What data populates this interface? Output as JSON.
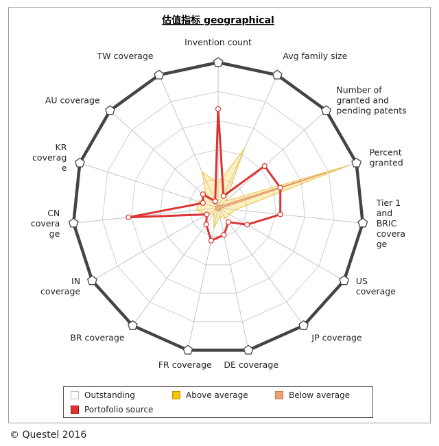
{
  "chart_data": {
    "type": "radar",
    "title": "估值指标 geographical",
    "axes": [
      "Invention count",
      "Avg family size",
      "Number of granted and pending patents",
      "Percent granted",
      "Tier 1 and BRIC coverage",
      "US coverage",
      "JP coverage",
      "DE coverage",
      "FR coverage",
      "BR coverage",
      "IN coverage",
      "CN coverage",
      "KR coverage",
      "AU coverage",
      "TW coverage"
    ],
    "axis_label_lines": [
      [
        "Invention count"
      ],
      [
        "Avg family size"
      ],
      [
        "Number of",
        "granted and",
        "pending patents"
      ],
      [
        "Percent",
        "granted"
      ],
      [
        "Tier 1",
        "and",
        "BRIC",
        "covera",
        "ge"
      ],
      [
        "US",
        "coverage"
      ],
      [
        "JP coverage"
      ],
      [
        "DE coverage"
      ],
      [
        "FR coverage"
      ],
      [
        "BR coverage"
      ],
      [
        "IN",
        "coverage"
      ],
      [
        "CN",
        "covera",
        "ge"
      ],
      [
        "KR",
        "coverag",
        "e"
      ],
      [
        "AU coverage"
      ],
      [
        "TW coverage"
      ]
    ],
    "range": [
      0,
      5
    ],
    "rings": 5,
    "series": [
      {
        "name": "Outstanding",
        "color": "#444444",
        "values": [
          5,
          5,
          5,
          5,
          5,
          5,
          5,
          5,
          5,
          5,
          5,
          5,
          5,
          5,
          5
        ]
      },
      {
        "name": "Above average",
        "color": "#f5c400",
        "values": [
          0.85,
          2.25,
          0.35,
          4.7,
          0.6,
          0.45,
          0.45,
          0.3,
          0.7,
          0.25,
          0.45,
          0.75,
          0.7,
          0.55,
          1.35
        ]
      },
      {
        "name": "Below average",
        "color": "#f0a070",
        "values": [
          0.1,
          0.1,
          0.1,
          3.9,
          0.1,
          0.1,
          0.1,
          0.1,
          0.1,
          0.1,
          0.1,
          0.1,
          0.1,
          0.1,
          0.1
        ]
      },
      {
        "name": "Portofolio source",
        "color": "#dd3333",
        "values": [
          3.4,
          0.45,
          2.15,
          2.25,
          2.15,
          1.15,
          0.6,
          0.95,
          1.15,
          0.7,
          0.45,
          3.1,
          0.55,
          0.7,
          0.25
        ]
      }
    ],
    "legend_position": "bottom",
    "grid": true
  },
  "legend": {
    "items": [
      {
        "label": "Outstanding",
        "swatch": "#ffffff",
        "border": "#bbbbbb"
      },
      {
        "label": "Above average",
        "swatch": "#f5c400",
        "border": "#c09000"
      },
      {
        "label": "Below average",
        "swatch": "#f0a070",
        "border": "#c87840"
      },
      {
        "label": "Portofolio source",
        "swatch": "#dd3333",
        "border": "#a01010"
      }
    ]
  },
  "copyright": "© Questel 2016"
}
